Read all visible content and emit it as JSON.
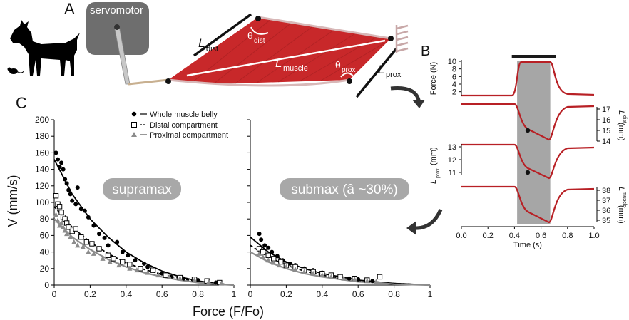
{
  "panels": {
    "a": "A",
    "b": "B",
    "c": "C"
  },
  "diagram": {
    "servo_label": "servomotor",
    "l_dist": "L",
    "l_dist_sub": "dist",
    "theta_dist": "θ",
    "theta_dist_sub": "dist",
    "l_muscle": "L",
    "l_muscle_sub": "muscle",
    "theta_prox": "θ",
    "theta_prox_sub": "prox",
    "l_prox": "L",
    "l_prox_sub": "prox",
    "colors": {
      "muscle": "#c8282a",
      "motor": "#6e6e6e",
      "tendon": "#c8b090"
    }
  },
  "panel_b": {
    "force_label": "Force (N)",
    "force_ticks": [
      "10",
      "8",
      "6",
      "4",
      "2"
    ],
    "ldist_label": "L",
    "ldist_label_sub": "dist",
    "ldist_unit": "(mm)",
    "ldist_ticks": [
      "17",
      "16",
      "15",
      "14"
    ],
    "lprox_label": "L",
    "lprox_label_sub": "prox",
    "lprox_unit": "(mm)",
    "lprox_ticks": [
      "13",
      "12",
      "11"
    ],
    "lmuscle_label": "L",
    "lmuscle_label_sub": "muscle",
    "lmuscle_unit": "(mm)",
    "lmuscle_ticks": [
      "38",
      "37",
      "36",
      "35"
    ],
    "time_ticks": [
      "0.0",
      "0.2",
      "0.4",
      "0.6",
      "0.8",
      "1.0"
    ],
    "xlabel": "Time (s)",
    "stim_window_s": [
      0.42,
      0.67
    ],
    "colors": {
      "trace": "#b82025",
      "shade": "#a6a6a6",
      "bar": "#1a1a1a"
    }
  },
  "chart_data": [
    {
      "type": "scatter",
      "title": "supramax",
      "xlabel": "Force (F/Fo)",
      "ylabel": "V (mm/s)",
      "xlim": [
        0,
        1
      ],
      "ylim": [
        0,
        200
      ],
      "x_ticks": [
        "0",
        "0.2",
        "0.4",
        "0.6",
        "0.8",
        "1"
      ],
      "y_ticks": [
        "0",
        "20",
        "40",
        "60",
        "80",
        "100",
        "120",
        "140",
        "160",
        "180",
        "200"
      ],
      "series": [
        {
          "name": "Whole muscle belly",
          "marker": "filled-circle",
          "color": "#000000",
          "points": [
            [
              0.01,
              160
            ],
            [
              0.02,
              152
            ],
            [
              0.03,
              143
            ],
            [
              0.04,
              148
            ],
            [
              0.05,
              140
            ],
            [
              0.06,
              128
            ],
            [
              0.07,
              123
            ],
            [
              0.08,
              115
            ],
            [
              0.09,
              110
            ],
            [
              0.1,
              102
            ],
            [
              0.12,
              98
            ],
            [
              0.13,
              118
            ],
            [
              0.15,
              92
            ],
            [
              0.17,
              90
            ],
            [
              0.19,
              82
            ],
            [
              0.22,
              72
            ],
            [
              0.25,
              62
            ],
            [
              0.28,
              57
            ],
            [
              0.3,
              48
            ],
            [
              0.35,
              52
            ],
            [
              0.38,
              40
            ],
            [
              0.41,
              36
            ],
            [
              0.45,
              30
            ],
            [
              0.5,
              26
            ],
            [
              0.52,
              22
            ],
            [
              0.55,
              18
            ],
            [
              0.6,
              14
            ],
            [
              0.65,
              10
            ],
            [
              0.72,
              8
            ],
            [
              0.8,
              6
            ],
            [
              0.85,
              4
            ],
            [
              0.9,
              3
            ]
          ],
          "fit": [
            [
              0,
              152
            ],
            [
              0.1,
              110
            ],
            [
              0.2,
              80
            ],
            [
              0.3,
              58
            ],
            [
              0.4,
              40
            ],
            [
              0.5,
              27
            ],
            [
              0.6,
              17
            ],
            [
              0.7,
              10
            ],
            [
              0.8,
              5
            ],
            [
              0.9,
              2
            ],
            [
              1,
              0
            ]
          ]
        },
        {
          "name": "Distal compartment",
          "marker": "open-square",
          "color": "#000000",
          "points": [
            [
              0.01,
              108
            ],
            [
              0.02,
              98
            ],
            [
              0.03,
              95
            ],
            [
              0.04,
              88
            ],
            [
              0.05,
              82
            ],
            [
              0.06,
              80
            ],
            [
              0.07,
              75
            ],
            [
              0.08,
              70
            ],
            [
              0.1,
              65
            ],
            [
              0.12,
              68
            ],
            [
              0.15,
              58
            ],
            [
              0.18,
              52
            ],
            [
              0.21,
              50
            ],
            [
              0.25,
              44
            ],
            [
              0.3,
              36
            ],
            [
              0.33,
              32
            ],
            [
              0.38,
              28
            ],
            [
              0.42,
              25
            ],
            [
              0.48,
              20
            ],
            [
              0.55,
              18
            ],
            [
              0.62,
              12
            ],
            [
              0.7,
              9
            ],
            [
              0.78,
              7
            ],
            [
              0.85,
              5
            ],
            [
              0.92,
              3
            ]
          ],
          "fit": [
            [
              0,
              95
            ],
            [
              0.1,
              70
            ],
            [
              0.2,
              52
            ],
            [
              0.3,
              38
            ],
            [
              0.4,
              27
            ],
            [
              0.5,
              19
            ],
            [
              0.6,
              13
            ],
            [
              0.7,
              8
            ],
            [
              0.8,
              4
            ],
            [
              0.9,
              2
            ],
            [
              1,
              0
            ]
          ]
        },
        {
          "name": "Proximal compartment",
          "marker": "filled-triangle",
          "color": "#8c8c8c",
          "points": [
            [
              0.01,
              85
            ],
            [
              0.02,
              78
            ],
            [
              0.03,
              72
            ],
            [
              0.04,
              75
            ],
            [
              0.05,
              70
            ],
            [
              0.06,
              66
            ],
            [
              0.07,
              62
            ],
            [
              0.09,
              58
            ],
            [
              0.11,
              52
            ],
            [
              0.13,
              48
            ],
            [
              0.16,
              46
            ],
            [
              0.19,
              40
            ],
            [
              0.22,
              38
            ],
            [
              0.27,
              32
            ],
            [
              0.31,
              28
            ],
            [
              0.36,
              24
            ],
            [
              0.42,
              20
            ],
            [
              0.46,
              18
            ],
            [
              0.52,
              15
            ],
            [
              0.58,
              12
            ],
            [
              0.64,
              10
            ],
            [
              0.7,
              8
            ],
            [
              0.78,
              6
            ],
            [
              0.86,
              4
            ],
            [
              0.93,
              2
            ]
          ],
          "fit": [
            [
              0,
              80
            ],
            [
              0.1,
              58
            ],
            [
              0.2,
              43
            ],
            [
              0.3,
              31
            ],
            [
              0.4,
              22
            ],
            [
              0.5,
              15
            ],
            [
              0.6,
              10
            ],
            [
              0.7,
              6
            ],
            [
              0.8,
              3
            ],
            [
              0.9,
              1
            ],
            [
              1,
              0
            ]
          ]
        }
      ]
    },
    {
      "type": "scatter",
      "title": "submax (â ~30%)",
      "xlabel": "Force (F/Fo)",
      "xlim": [
        0,
        1
      ],
      "ylim": [
        0,
        200
      ],
      "x_ticks": [
        "0",
        "0.2",
        "0.4",
        "0.6",
        "0.8",
        "1"
      ],
      "series": [
        {
          "name": "Whole muscle belly",
          "marker": "filled-circle",
          "color": "#000000",
          "points": [
            [
              0.05,
              62
            ],
            [
              0.06,
              55
            ],
            [
              0.08,
              48
            ],
            [
              0.1,
              45
            ],
            [
              0.12,
              40
            ],
            [
              0.15,
              35
            ],
            [
              0.18,
              30
            ],
            [
              0.22,
              26
            ],
            [
              0.25,
              24
            ],
            [
              0.3,
              20
            ],
            [
              0.35,
              18
            ],
            [
              0.4,
              15
            ],
            [
              0.45,
              12
            ],
            [
              0.5,
              10
            ],
            [
              0.55,
              8
            ],
            [
              0.6,
              7
            ],
            [
              0.68,
              5
            ]
          ],
          "fit": [
            [
              0,
              58
            ],
            [
              0.1,
              40
            ],
            [
              0.2,
              28
            ],
            [
              0.3,
              20
            ],
            [
              0.4,
              14
            ],
            [
              0.5,
              10
            ],
            [
              0.6,
              6
            ],
            [
              0.7,
              4
            ],
            [
              0.8,
              2
            ],
            [
              0.9,
              1
            ],
            [
              1,
              0
            ]
          ]
        },
        {
          "name": "Distal compartment",
          "marker": "open-square",
          "color": "#000000",
          "points": [
            [
              0.05,
              44
            ],
            [
              0.07,
              40
            ],
            [
              0.1,
              36
            ],
            [
              0.13,
              32
            ],
            [
              0.17,
              28
            ],
            [
              0.2,
              24
            ],
            [
              0.25,
              22
            ],
            [
              0.3,
              18
            ],
            [
              0.35,
              16
            ],
            [
              0.4,
              14
            ],
            [
              0.45,
              12
            ],
            [
              0.5,
              10
            ],
            [
              0.58,
              8
            ],
            [
              0.65,
              6
            ],
            [
              0.72,
              10
            ]
          ],
          "fit": [
            [
              0,
              48
            ],
            [
              0.1,
              34
            ],
            [
              0.2,
              24
            ],
            [
              0.3,
              17
            ],
            [
              0.4,
              12
            ],
            [
              0.5,
              8
            ],
            [
              0.6,
              5
            ],
            [
              0.7,
              3
            ],
            [
              0.8,
              2
            ],
            [
              0.9,
              1
            ],
            [
              1,
              0
            ]
          ]
        },
        {
          "name": "Proximal compartment",
          "marker": "filled-triangle",
          "color": "#8c8c8c",
          "points": [
            [
              0.05,
              38
            ],
            [
              0.07,
              34
            ],
            [
              0.1,
              30
            ],
            [
              0.13,
              27
            ],
            [
              0.16,
              24
            ],
            [
              0.2,
              22
            ],
            [
              0.25,
              19
            ],
            [
              0.3,
              16
            ],
            [
              0.35,
              14
            ],
            [
              0.4,
              12
            ],
            [
              0.45,
              10
            ],
            [
              0.52,
              8
            ],
            [
              0.58,
              7
            ],
            [
              0.65,
              5
            ],
            [
              0.7,
              4
            ]
          ],
          "fit": [
            [
              0,
              40
            ],
            [
              0.1,
              28
            ],
            [
              0.2,
              20
            ],
            [
              0.3,
              14
            ],
            [
              0.4,
              10
            ],
            [
              0.5,
              7
            ],
            [
              0.6,
              4
            ],
            [
              0.7,
              3
            ],
            [
              0.8,
              1
            ],
            [
              0.9,
              0.5
            ],
            [
              1,
              0
            ]
          ]
        }
      ]
    }
  ]
}
